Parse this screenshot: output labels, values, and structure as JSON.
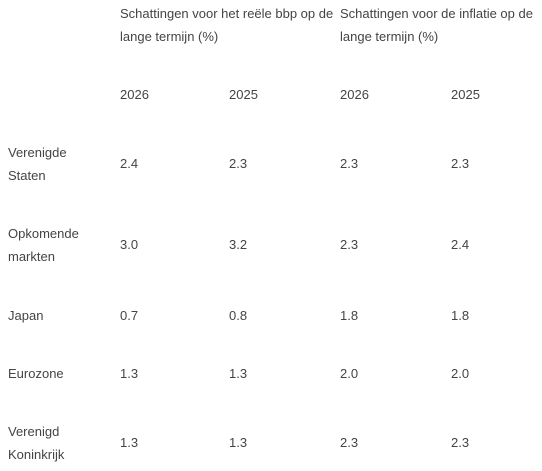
{
  "table": {
    "group_headers": [
      "Schattingen voor het reële bbp op de lange termijn (%)",
      "Schattingen voor de inflatie op de lange termijn (%)"
    ],
    "years": [
      "2026",
      "2025",
      "2026",
      "2025"
    ],
    "rows": [
      {
        "label_lines": [
          "Verenigde",
          "Staten"
        ],
        "values": [
          "2.4",
          "2.3",
          "2.3",
          "2.3"
        ]
      },
      {
        "label_lines": [
          "Opkomende",
          "markten"
        ],
        "values": [
          "3.0",
          "3.2",
          "2.3",
          "2.4"
        ]
      },
      {
        "label_lines": [
          "Japan"
        ],
        "values": [
          "0.7",
          "0.8",
          "1.8",
          "1.8"
        ]
      },
      {
        "label_lines": [
          "Eurozone"
        ],
        "values": [
          "1.3",
          "1.3",
          "2.0",
          "2.0"
        ]
      },
      {
        "label_lines": [
          "Verenigd",
          "Koninkrijk"
        ],
        "values": [
          "1.3",
          "1.3",
          "2.3",
          "2.3"
        ]
      }
    ]
  }
}
